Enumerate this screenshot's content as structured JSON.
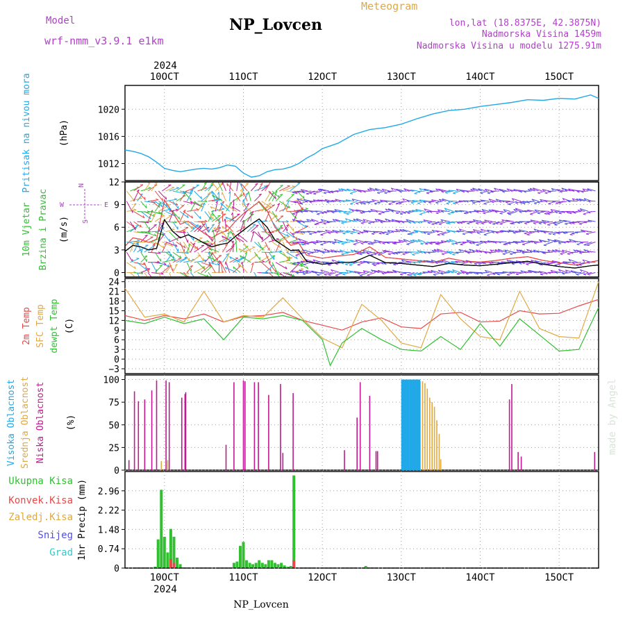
{
  "header": {
    "model_label": "Model",
    "model_value": "wrf-nmm_v3.9.1 e1km",
    "title": "NP_Lovcen",
    "meteogram_label": "Meteogram",
    "coords": "lon,lat (18.8375E, 42.3875N)",
    "altitude": "Nadmorska Visina 1459m",
    "model_altitude": "Nadmorska Visina u modelu 1275.91m",
    "footer_station": "NP_Lovcen",
    "watermark": "made by Angel"
  },
  "colors": {
    "purple": "#b040c8",
    "orange": "#e0a840",
    "cyan": "#20a8e8",
    "green": "#30c030",
    "red": "#e84848",
    "magenta": "#c01890",
    "blue": "#5050e0",
    "teal": "#38c8c8"
  },
  "time_axis": {
    "year": "2024",
    "ticks": [
      "10OCT",
      "11OCT",
      "12OCT",
      "13OCT",
      "14OCT",
      "15OCT"
    ],
    "tick_days": [
      10,
      11,
      12,
      13,
      14,
      15
    ],
    "range_days": [
      9.5,
      15.5
    ]
  },
  "chart_data": [
    {
      "type": "line",
      "title": "",
      "ylabel_lines": [
        "Pritisak na nivou mora",
        "(hPa)"
      ],
      "ylim": [
        1009.5,
        1023.5
      ],
      "yticks": [
        1012,
        1016,
        1020
      ],
      "grid": true,
      "series": [
        {
          "color": "#20a8e8",
          "x": [
            9.5,
            9.6,
            9.7,
            9.8,
            9.9,
            10.0,
            10.1,
            10.2,
            10.3,
            10.4,
            10.5,
            10.6,
            10.7,
            10.8,
            10.9,
            11.0,
            11.1,
            11.2,
            11.3,
            11.4,
            11.5,
            11.6,
            11.7,
            11.8,
            11.9,
            12.0,
            12.2,
            12.4,
            12.6,
            12.8,
            13.0,
            13.2,
            13.4,
            13.6,
            13.8,
            14.0,
            14.2,
            14.4,
            14.6,
            14.8,
            15.0,
            15.2,
            15.4,
            15.5
          ],
          "y": [
            1014.0,
            1013.8,
            1013.5,
            1013.0,
            1012.2,
            1011.3,
            1011.0,
            1010.8,
            1011.0,
            1011.2,
            1011.3,
            1011.2,
            1011.4,
            1011.8,
            1011.6,
            1010.6,
            1010.0,
            1010.2,
            1010.8,
            1011.1,
            1011.2,
            1011.5,
            1012.0,
            1012.8,
            1013.4,
            1014.2,
            1015.0,
            1016.3,
            1017.0,
            1017.3,
            1017.8,
            1018.6,
            1019.3,
            1019.8,
            1020.0,
            1020.4,
            1020.7,
            1021.0,
            1021.4,
            1021.3,
            1021.6,
            1021.5,
            1022.1,
            1021.6
          ]
        }
      ]
    },
    {
      "type": "line",
      "title": "",
      "ylabel_lines": [
        "10m Vjetar",
        "Brzina i Pravac",
        "(m/s)"
      ],
      "compass": {
        "n": "N",
        "s": "S",
        "e": "E",
        "w": "W"
      },
      "ylim": [
        -0.6,
        12
      ],
      "yticks": [
        0,
        3,
        6,
        9,
        12
      ],
      "grid": true,
      "series": [
        {
          "name": "speed",
          "color": "#000000",
          "x": [
            9.5,
            9.6,
            9.7,
            9.8,
            9.9,
            10.0,
            10.1,
            10.2,
            10.3,
            10.4,
            10.5,
            10.6,
            10.7,
            10.8,
            10.9,
            11.0,
            11.1,
            11.2,
            11.3,
            11.4,
            11.5,
            11.6,
            11.7,
            11.8,
            12.0,
            12.2,
            12.4,
            12.6,
            12.8,
            13.0,
            13.2,
            13.4,
            13.6,
            13.8,
            14.0,
            14.2,
            14.4,
            14.6,
            14.8,
            15.0,
            15.2,
            15.4,
            15.5
          ],
          "y": [
            2.8,
            3.6,
            3.4,
            3.0,
            3.2,
            7.0,
            5.5,
            4.6,
            5.0,
            4.5,
            3.9,
            3.4,
            3.7,
            3.9,
            4.8,
            5.6,
            6.4,
            7.1,
            6.0,
            4.3,
            3.6,
            2.9,
            3.0,
            1.5,
            1.1,
            1.3,
            1.4,
            2.3,
            1.3,
            1.2,
            1.0,
            0.8,
            1.2,
            1.0,
            0.9,
            1.1,
            1.3,
            1.5,
            1.1,
            0.8,
            0.6,
            0.9,
            1.0
          ]
        },
        {
          "name": "gust",
          "color": "#e84848",
          "x": [
            9.5,
            9.6,
            9.7,
            9.8,
            9.9,
            10.0,
            10.1,
            10.2,
            10.3,
            10.4,
            10.5,
            10.6,
            10.7,
            10.8,
            10.9,
            11.0,
            11.1,
            11.2,
            11.3,
            11.4,
            11.5,
            11.6,
            11.7,
            11.8,
            12.0,
            12.2,
            12.4,
            12.6,
            12.8,
            13.0,
            13.2,
            13.4,
            13.6,
            13.8,
            14.0,
            14.2,
            14.4,
            14.6,
            14.8,
            15.0,
            15.2,
            15.4,
            15.5
          ],
          "y": [
            3.5,
            4.6,
            4.4,
            4.0,
            4.4,
            9.6,
            8.0,
            6.4,
            6.8,
            6.0,
            5.2,
            4.6,
            5.2,
            5.6,
            6.8,
            7.8,
            8.6,
            9.4,
            8.2,
            6.0,
            4.8,
            3.6,
            3.9,
            2.3,
            1.9,
            2.2,
            2.4,
            3.4,
            2.0,
            1.8,
            1.6,
            1.3,
            1.9,
            1.5,
            1.4,
            1.6,
            1.9,
            2.1,
            1.6,
            1.3,
            1.0,
            1.4,
            1.6
          ]
        }
      ]
    },
    {
      "type": "line",
      "title": "",
      "ylabel_lines": [
        "2m Temp",
        "SFC Temp",
        "dewpt Temp",
        "(C)"
      ],
      "ylim": [
        -4.5,
        25
      ],
      "yticks": [
        -3,
        0,
        3,
        6,
        9,
        12,
        15,
        18,
        21,
        24
      ],
      "grid": true,
      "series": [
        {
          "name": "2m Temp",
          "color": "#e84848",
          "x": [
            9.5,
            9.75,
            10.0,
            10.25,
            10.5,
            10.75,
            11.0,
            11.25,
            11.5,
            11.75,
            12.0,
            12.25,
            12.5,
            12.75,
            13.0,
            13.25,
            13.5,
            13.75,
            14.0,
            14.25,
            14.5,
            14.75,
            15.0,
            15.25,
            15.5
          ],
          "y": [
            13.5,
            12.0,
            13.5,
            12.5,
            14.0,
            11.5,
            13.2,
            13.5,
            14.5,
            12.0,
            10.5,
            9.0,
            11.5,
            12.8,
            10.0,
            9.5,
            14.0,
            14.5,
            11.5,
            11.8,
            15.0,
            14.0,
            14.2,
            16.5,
            18.5
          ]
        },
        {
          "name": "SFC Temp",
          "color": "#e0a840",
          "x": [
            9.5,
            9.75,
            10.0,
            10.25,
            10.5,
            10.75,
            11.0,
            11.25,
            11.5,
            11.75,
            12.0,
            12.25,
            12.5,
            12.75,
            13.0,
            13.25,
            13.5,
            13.75,
            14.0,
            14.25,
            14.5,
            14.75,
            15.0,
            15.25,
            15.5
          ],
          "y": [
            22.0,
            13.0,
            14.0,
            11.5,
            21.0,
            11.5,
            13.5,
            13.0,
            19.0,
            12.5,
            6.5,
            3.5,
            17.0,
            12.0,
            5.0,
            3.5,
            20.0,
            12.5,
            7.0,
            6.0,
            21.0,
            9.5,
            7.0,
            6.5,
            24.0
          ]
        },
        {
          "name": "dewpt Temp",
          "color": "#30c030",
          "x": [
            9.5,
            9.75,
            10.0,
            10.25,
            10.5,
            10.75,
            11.0,
            11.25,
            11.5,
            11.75,
            12.0,
            12.1,
            12.25,
            12.5,
            12.75,
            13.0,
            13.25,
            13.5,
            13.75,
            14.0,
            14.25,
            14.5,
            14.75,
            15.0,
            15.25,
            15.5
          ],
          "y": [
            12.0,
            11.0,
            13.0,
            11.0,
            12.5,
            6.0,
            13.0,
            12.5,
            13.5,
            12.0,
            6.0,
            -2.0,
            5.0,
            9.5,
            6.0,
            3.0,
            2.5,
            7.0,
            3.0,
            11.0,
            4.0,
            12.5,
            7.5,
            2.5,
            3.0,
            16.0
          ]
        }
      ]
    },
    {
      "type": "bar",
      "title": "",
      "ylabel_lines": [
        "Visoka Oblacnost",
        "Srednja Oblacnost",
        "Niska Oblacnost",
        "(%)"
      ],
      "ylim": [
        0,
        105
      ],
      "yticks": [
        0,
        25,
        50,
        75,
        100
      ],
      "grid": true,
      "series": [
        {
          "name": "Niska Oblacnost",
          "color": "#c01890",
          "x": [
            9.55,
            9.62,
            9.67,
            9.75,
            9.84,
            9.9,
            10.02,
            10.06,
            10.22,
            10.26,
            10.27,
            10.78,
            10.88,
            11.0,
            11.02,
            11.14,
            11.19,
            11.32,
            11.47,
            11.5,
            11.63,
            12.28,
            12.44,
            12.48,
            12.6,
            12.68,
            12.7,
            14.37,
            14.4,
            14.48,
            14.52,
            15.45
          ],
          "y": [
            11,
            87,
            76,
            78,
            88,
            99,
            99,
            97,
            80,
            84,
            86,
            28,
            97,
            99,
            98,
            97,
            97,
            83,
            95,
            19,
            85,
            22,
            58,
            97,
            82,
            21,
            21,
            78,
            95,
            20,
            15,
            20
          ]
        },
        {
          "name": "Srednja Oblacnost",
          "color": "#e0a840",
          "x": [
            9.96,
            10.04,
            13.15,
            13.18,
            13.21,
            13.24,
            13.27,
            13.3,
            13.33,
            13.36,
            13.39,
            13.42,
            13.45,
            13.48,
            13.5
          ],
          "y": [
            10,
            11,
            100,
            100,
            100,
            98,
            98,
            96,
            90,
            80,
            75,
            70,
            55,
            40,
            12
          ]
        },
        {
          "name": "Visoka Oblacnost",
          "color": "#20a8e8",
          "x": [
            13.01,
            13.03,
            13.05,
            13.07,
            13.09,
            13.11,
            13.13,
            13.15,
            13.17,
            13.19,
            13.21,
            13.23
          ],
          "y": [
            100,
            100,
            100,
            100,
            100,
            100,
            100,
            100,
            100,
            100,
            100,
            100
          ]
        }
      ]
    },
    {
      "type": "bar",
      "title": "",
      "ylabel_lines": [
        "1hr Precip (mm)"
      ],
      "legend": [
        "Ukupna Kisa",
        "Konvek.Kisa",
        "Zaledj.Kisa",
        "Snijeg",
        "Grad"
      ],
      "ylim": [
        0,
        3.7
      ],
      "yticks": [
        0,
        0.74,
        1.48,
        2.22,
        2.96
      ],
      "grid": true,
      "series": [
        {
          "name": "Ukupna Kisa",
          "color": "#30c030",
          "x": [
            9.88,
            9.92,
            9.96,
            10.0,
            10.04,
            10.08,
            10.12,
            10.16,
            10.2,
            10.88,
            10.92,
            10.96,
            11.0,
            11.04,
            11.08,
            11.12,
            11.16,
            11.2,
            11.24,
            11.28,
            11.32,
            11.36,
            11.4,
            11.44,
            11.48,
            11.52,
            11.56,
            11.6,
            11.64,
            12.55
          ],
          "y": [
            0.05,
            1.1,
            3.0,
            1.2,
            0.6,
            1.5,
            1.2,
            0.4,
            0.15,
            0.2,
            0.25,
            0.85,
            1.0,
            0.3,
            0.2,
            0.15,
            0.2,
            0.3,
            0.2,
            0.15,
            0.3,
            0.3,
            0.2,
            0.15,
            0.2,
            0.1,
            0.05,
            0.08,
            3.55,
            0.08
          ]
        },
        {
          "name": "Konvek.Kisa",
          "color": "#e84848",
          "x": [
            10.08,
            10.12,
            11.64
          ],
          "y": [
            0.35,
            0.2,
            0.3
          ]
        }
      ]
    }
  ]
}
